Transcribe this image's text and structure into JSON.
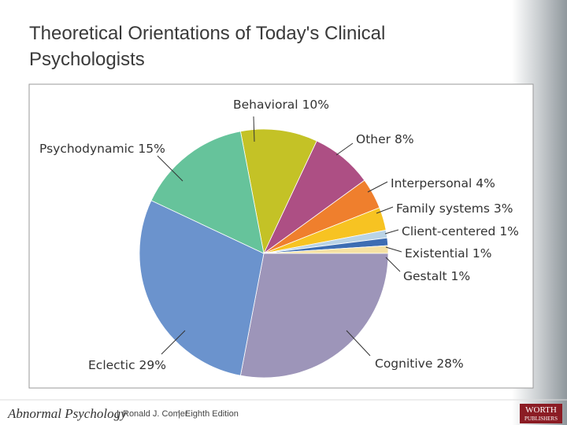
{
  "chart_data": {
    "type": "pie",
    "title": [
      "Theoretical Orientations of Today's Clinical",
      "Psychologists"
    ],
    "categories": [
      "Behavioral",
      "Other",
      "Interpersonal",
      "Family systems",
      "Client-centered",
      "Existential",
      "Gestalt",
      "Cognitive",
      "Eclectic",
      "Psychodynamic"
    ],
    "values": [
      10,
      8,
      4,
      3,
      1,
      1,
      1,
      28,
      29,
      15
    ],
    "value_labels": [
      "10%",
      "8%",
      "4%",
      "3%",
      "1%",
      "1%",
      "1%",
      "28%",
      "29%",
      "15%"
    ],
    "colors": [
      "#c4c226",
      "#ad4f84",
      "#ef7f2d",
      "#f7c322",
      "#b9d3e6",
      "#3d6db3",
      "#f6e1a2",
      "#9d95b9",
      "#6b93cd",
      "#66c39b"
    ]
  },
  "footer": {
    "book": "Abnormal Psychology",
    "author": "Ronald J. Comer",
    "edition": "Eighth Edition",
    "publisher": [
      "WORTH",
      "PUBLISHERS"
    ]
  }
}
